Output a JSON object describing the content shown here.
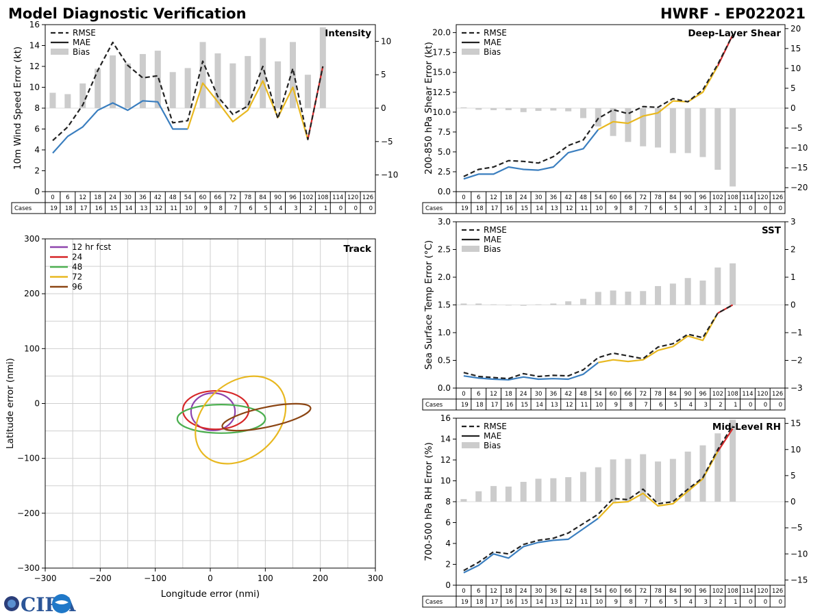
{
  "title_left": "Model Diagnostic Verification",
  "title_right": "HWRF - EP022021",
  "logo": {
    "text": "CIRA"
  },
  "colors": {
    "rmse": "#222222",
    "mae": "#3a7ebf",
    "bias": "#cccccc",
    "ext_yellow": "#e8b820",
    "ext_red": "#d62728"
  },
  "legend_labels": [
    "RMSE",
    "MAE",
    "Bias"
  ],
  "cases_label": "Cases",
  "hours": [
    "0",
    "6",
    "12",
    "18",
    "24",
    "30",
    "36",
    "42",
    "48",
    "54",
    "60",
    "66",
    "72",
    "78",
    "84",
    "90",
    "96",
    "102",
    "108",
    "114",
    "120",
    "126"
  ],
  "cases": [
    "19",
    "18",
    "17",
    "16",
    "15",
    "14",
    "13",
    "12",
    "11",
    "10",
    "9",
    "8",
    "7",
    "6",
    "5",
    "4",
    "3",
    "2",
    "1",
    "0",
    "0",
    "0"
  ],
  "chart_data": [
    {
      "id": "intensity",
      "type": "line+bar",
      "title": "Intensity",
      "ylabel": "10m Wind Speed Error (kt)",
      "ylim": [
        0,
        16
      ],
      "y2lim": [
        -12.5,
        12.5
      ],
      "yticks": [
        0,
        2,
        4,
        6,
        8,
        10,
        12,
        14,
        16
      ],
      "y2ticks": [
        -10,
        -5,
        0,
        5,
        10
      ],
      "yticklabels": [
        "0",
        "2",
        "4",
        "6",
        "8",
        "10",
        "12",
        "14",
        "16"
      ],
      "y2ticklabels": [
        "−10",
        "−5",
        "0",
        "5",
        "10"
      ],
      "rmse": [
        4.9,
        6.2,
        8.3,
        11.6,
        14.3,
        12.1,
        10.9,
        11.1,
        6.6,
        6.8,
        12.5,
        9.1,
        7.4,
        8.2,
        12.0,
        7.0,
        11.8,
        5.0,
        12.0
      ],
      "mae": [
        3.7,
        5.3,
        6.2,
        7.8,
        8.5,
        7.8,
        8.7,
        8.6,
        6.0,
        6.0,
        10.4,
        8.6,
        6.7,
        7.8,
        10.6,
        7.1,
        10.0,
        5.0,
        12.0
      ],
      "bias": [
        2.3,
        2.1,
        3.7,
        5.9,
        7.9,
        6.7,
        8.1,
        8.6,
        5.4,
        6.0,
        9.9,
        8.2,
        6.7,
        7.8,
        10.5,
        7.0,
        9.9,
        5.0,
        12.1
      ]
    },
    {
      "id": "shear",
      "type": "line+bar",
      "title": "Deep-Layer Shear",
      "ylabel": "200-850 hPa Shear Error (kt)",
      "ylim": [
        0,
        21
      ],
      "y2lim": [
        -21,
        21
      ],
      "yticks": [
        0,
        2.5,
        5,
        7.5,
        10,
        12.5,
        15,
        17.5,
        20
      ],
      "y2ticks": [
        -20,
        -15,
        -10,
        -5,
        0,
        5,
        10,
        15,
        20
      ],
      "yticklabels": [
        "0.0",
        "2.5",
        "5.0",
        "7.5",
        "10.0",
        "12.5",
        "15.0",
        "17.5",
        "20.0"
      ],
      "y2ticklabels": [
        "−20",
        "−15",
        "−10",
        "−5",
        "0",
        "5",
        "10",
        "15",
        "20"
      ],
      "rmse": [
        1.9,
        2.8,
        3.1,
        3.9,
        3.8,
        3.6,
        4.4,
        5.8,
        6.5,
        9.2,
        10.3,
        9.8,
        10.7,
        10.6,
        11.7,
        11.3,
        12.8,
        16.0,
        19.7
      ],
      "mae": [
        1.6,
        2.2,
        2.2,
        3.1,
        2.8,
        2.7,
        3.1,
        4.9,
        5.4,
        7.8,
        8.8,
        8.6,
        9.5,
        9.9,
        11.4,
        11.3,
        12.5,
        15.8,
        19.7
      ],
      "bias": [
        0.2,
        -0.4,
        -0.5,
        -0.5,
        -1.0,
        -0.7,
        -0.6,
        -0.8,
        -2.5,
        -4.6,
        -7.0,
        -8.5,
        -9.6,
        -9.9,
        -11.3,
        -11.3,
        -12.3,
        -15.5,
        -19.7
      ]
    },
    {
      "id": "sst",
      "type": "line+bar",
      "title": "SST",
      "ylabel": "Sea Surface Temp Error (°C)",
      "ylim": [
        0,
        3
      ],
      "y2lim": [
        -3,
        3
      ],
      "yticks": [
        0,
        0.5,
        1,
        1.5,
        2,
        2.5,
        3
      ],
      "y2ticks": [
        -3,
        -2,
        -1,
        0,
        1,
        2,
        3
      ],
      "yticklabels": [
        "0.0",
        "0.5",
        "1.0",
        "1.5",
        "2.0",
        "2.5",
        "3.0"
      ],
      "y2ticklabels": [
        "−3",
        "−2",
        "−1",
        "0",
        "1",
        "2",
        "3"
      ],
      "rmse": [
        0.28,
        0.21,
        0.19,
        0.17,
        0.26,
        0.21,
        0.23,
        0.22,
        0.33,
        0.55,
        0.63,
        0.58,
        0.53,
        0.74,
        0.8,
        0.97,
        0.91,
        1.35,
        1.5
      ],
      "mae": [
        0.22,
        0.18,
        0.16,
        0.15,
        0.2,
        0.16,
        0.17,
        0.16,
        0.25,
        0.46,
        0.51,
        0.48,
        0.51,
        0.68,
        0.75,
        0.94,
        0.86,
        1.35,
        1.5
      ],
      "bias": [
        0.05,
        0.05,
        0.02,
        0.0,
        -0.03,
        0.02,
        0.05,
        0.13,
        0.22,
        0.47,
        0.52,
        0.48,
        0.5,
        0.68,
        0.77,
        0.97,
        0.88,
        1.35,
        1.5
      ]
    },
    {
      "id": "rh",
      "type": "line+bar",
      "title": "Mid-Level RH",
      "ylabel": "700-500 hPa RH Error (%)",
      "ylim": [
        0,
        16
      ],
      "y2lim": [
        -16,
        16
      ],
      "yticks": [
        0,
        2,
        4,
        6,
        8,
        10,
        12,
        14,
        16
      ],
      "y2ticks": [
        -15,
        -10,
        -5,
        0,
        5,
        10,
        15
      ],
      "yticklabels": [
        "0",
        "2",
        "4",
        "6",
        "8",
        "10",
        "12",
        "14",
        "16"
      ],
      "y2ticklabels": [
        "−15",
        "−10",
        "−5",
        "0",
        "5",
        "10",
        "15"
      ],
      "rmse": [
        1.4,
        2.2,
        3.2,
        3.0,
        3.9,
        4.3,
        4.5,
        5.0,
        5.9,
        6.8,
        8.3,
        8.2,
        9.2,
        7.8,
        8.0,
        9.2,
        10.3,
        13.0,
        15.3
      ],
      "mae": [
        1.2,
        1.9,
        3.0,
        2.6,
        3.7,
        4.1,
        4.3,
        4.4,
        5.4,
        6.4,
        7.9,
        8.0,
        8.8,
        7.6,
        7.8,
        9.0,
        10.2,
        12.8,
        15.0
      ],
      "bias": [
        0.5,
        2.0,
        3.0,
        2.9,
        3.8,
        4.4,
        4.5,
        4.7,
        5.7,
        6.6,
        8.1,
        8.2,
        9.1,
        7.7,
        8.2,
        9.6,
        10.8,
        13.1,
        15.7
      ]
    },
    {
      "id": "track",
      "type": "ellipse",
      "title": "Track",
      "xlabel": "Longitude error (nmi)",
      "ylabel": "Latitude error (nmi)",
      "xlim": [
        -300,
        300
      ],
      "ylim": [
        -300,
        300
      ],
      "xticks": [
        -300,
        -200,
        -100,
        0,
        100,
        200,
        300
      ],
      "yticks": [
        -300,
        -200,
        -100,
        0,
        100,
        200,
        300
      ],
      "xticklabels": [
        "−300",
        "−200",
        "−100",
        "0",
        "100",
        "200",
        "300"
      ],
      "yticklabels": [
        "−300",
        "−200",
        "−100",
        "0",
        "100",
        "200",
        "300"
      ],
      "ellipses": [
        {
          "label": "12 hr fcst",
          "color": "#8e44ad",
          "cx": 5,
          "cy": -15,
          "rx": 40,
          "ry": 34,
          "angle": 0
        },
        {
          "label": "24",
          "color": "#d62728",
          "cx": 10,
          "cy": -12,
          "rx": 60,
          "ry": 35,
          "angle": 0
        },
        {
          "label": "48",
          "color": "#4caf50",
          "cx": 20,
          "cy": -28,
          "rx": 80,
          "ry": 26,
          "angle": 0
        },
        {
          "label": "72",
          "color": "#e8b820",
          "cx": 55,
          "cy": -30,
          "rx": 92,
          "ry": 68,
          "angle": -42
        },
        {
          "label": "96",
          "color": "#8b4513",
          "cx": 102,
          "cy": -25,
          "rx": 82,
          "ry": 18,
          "angle": -12
        }
      ]
    }
  ]
}
